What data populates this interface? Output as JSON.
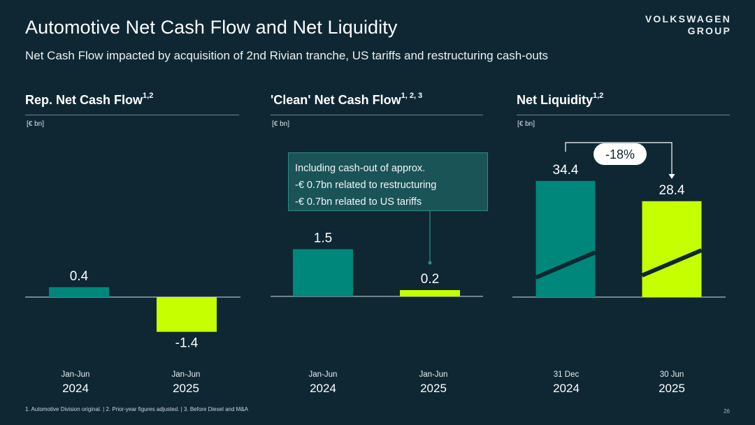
{
  "title": "Automotive Net Cash Flow and Net Liquidity",
  "subtitle": "Net Cash Flow impacted by acquisition of 2nd Rivian tranche, US tariffs and restructuring cash-outs",
  "logo": {
    "line1": "VOLKSWAGEN",
    "line2": "GROUP"
  },
  "callout": {
    "line1": "Including cash-out of approx.",
    "line2": "-€ 0.7bn related to restructuring",
    "line3": "-€ 0.7bn related to US tariffs"
  },
  "footnote": "1. Automotive Division original. | 2. Prior-year figures adjusted. | 3. Before Diesel and M&A",
  "page_number": "26",
  "colors": {
    "background": "#0e2733",
    "teal": "#00877b",
    "lime": "#c6ff00"
  },
  "chart_data": [
    {
      "type": "bar",
      "title": "Rep. Net Cash Flow",
      "title_sup": "1,2",
      "unit": "[€ bn]",
      "categories": [
        {
          "period": "Jan-Jun",
          "year": "2024"
        },
        {
          "period": "Jan-Jun",
          "year": "2025"
        }
      ],
      "values": [
        0.4,
        -1.4
      ],
      "value_labels": [
        "0.4",
        "-1.4"
      ],
      "colors": [
        "#00877b",
        "#c6ff00"
      ]
    },
    {
      "type": "bar",
      "title": "'Clean' Net Cash Flow",
      "title_sup": "1, 2, 3",
      "unit": "[€ bn]",
      "categories": [
        {
          "period": "Jan-Jun",
          "year": "2024"
        },
        {
          "period": "Jan-Jun",
          "year": "2025"
        }
      ],
      "values": [
        1.5,
        0.2
      ],
      "value_labels": [
        "1.5",
        "0.2"
      ],
      "colors": [
        "#00877b",
        "#c6ff00"
      ]
    },
    {
      "type": "bar",
      "title": "Net Liquidity",
      "title_sup": "1,2",
      "unit": "[€ bn]",
      "categories": [
        {
          "period": "31 Dec",
          "year": "2024"
        },
        {
          "period": "30 Jun",
          "year": "2025"
        }
      ],
      "values": [
        34.4,
        28.4
      ],
      "value_labels": [
        "34.4",
        "28.4"
      ],
      "colors": [
        "#00877b",
        "#c6ff00"
      ],
      "change_label": "-18%"
    }
  ]
}
